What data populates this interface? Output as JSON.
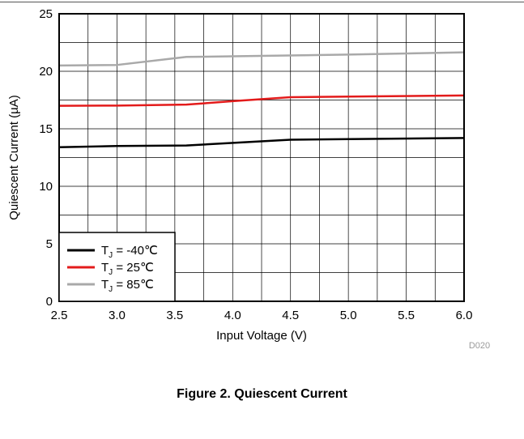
{
  "chart_data": {
    "type": "line",
    "title": "",
    "xlabel": "Input Voltage (V)",
    "ylabel": "Quiescent Current (µA)",
    "xlim": [
      2.5,
      6.0
    ],
    "ylim": [
      0,
      25
    ],
    "x_ticks": [
      "2.5",
      "3.0",
      "3.5",
      "4.0",
      "4.5",
      "5.0",
      "5.5",
      "6.0"
    ],
    "y_ticks": [
      "0",
      "5",
      "10",
      "15",
      "20",
      "25"
    ],
    "x_minor_step": 0.25,
    "y_minor_step": 2.5,
    "grid": true,
    "legend_position": "bottom-left",
    "series": [
      {
        "legend_main": "T",
        "legend_sub": "J",
        "legend_value": " = -40℃",
        "color": "#000000",
        "points": [
          [
            2.5,
            13.4
          ],
          [
            3.0,
            13.5
          ],
          [
            3.6,
            13.55
          ],
          [
            4.5,
            14.05
          ],
          [
            5.0,
            14.1
          ],
          [
            6.0,
            14.2
          ]
        ]
      },
      {
        "legend_main": "T",
        "legend_sub": "J",
        "legend_value": " =  25℃",
        "color": "#e31b1b",
        "points": [
          [
            2.5,
            17.0
          ],
          [
            3.0,
            17.02
          ],
          [
            3.6,
            17.1
          ],
          [
            4.0,
            17.4
          ],
          [
            4.5,
            17.75
          ],
          [
            5.0,
            17.8
          ],
          [
            6.0,
            17.9
          ]
        ]
      },
      {
        "legend_main": "T",
        "legend_sub": "J",
        "legend_value": " =  85℃",
        "color": "#a9a9a9",
        "points": [
          [
            2.5,
            20.5
          ],
          [
            3.0,
            20.55
          ],
          [
            3.6,
            21.25
          ],
          [
            4.0,
            21.3
          ],
          [
            5.0,
            21.45
          ],
          [
            6.0,
            21.65
          ]
        ]
      }
    ]
  },
  "figure_id": "D020",
  "caption": "Figure 2. Quiescent Current"
}
